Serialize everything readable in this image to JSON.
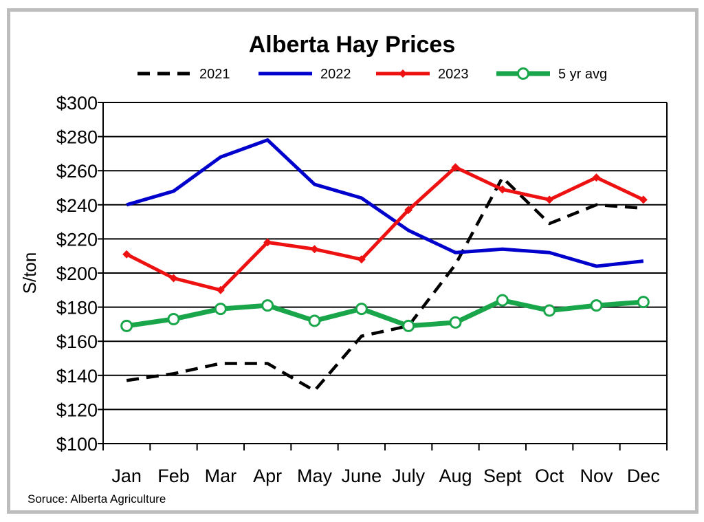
{
  "chart_data": {
    "type": "line",
    "title": "Alberta Hay Prices",
    "ylabel": "S/ton",
    "xlabel": "",
    "categories": [
      "Jan",
      "Feb",
      "Mar",
      "Apr",
      "May",
      "June",
      "July",
      "Aug",
      "Sept",
      "Oct",
      "Nov",
      "Dec"
    ],
    "ylim": [
      100,
      300
    ],
    "yticks": [
      100,
      120,
      140,
      160,
      180,
      200,
      220,
      240,
      260,
      280,
      300
    ],
    "ytick_labels": [
      "$100",
      "$120",
      "$140",
      "$160",
      "$180",
      "$200",
      "$220",
      "$240",
      "$260",
      "$280",
      "$300"
    ],
    "grid": true,
    "legend_position": "top",
    "series": [
      {
        "name": "2021",
        "color": "#000000",
        "style": "dashed",
        "marker": "none",
        "values": [
          137,
          141,
          147,
          147,
          131,
          163,
          169,
          205,
          256,
          229,
          240,
          238
        ]
      },
      {
        "name": "2022",
        "color": "#0000cc",
        "style": "solid",
        "marker": "none",
        "values": [
          240,
          248,
          268,
          278,
          252,
          244,
          225,
          212,
          214,
          212,
          204,
          207
        ]
      },
      {
        "name": "2023",
        "color": "#ee1111",
        "style": "solid",
        "marker": "diamond",
        "values": [
          211,
          197,
          190,
          218,
          214,
          208,
          237,
          262,
          249,
          243,
          256,
          243
        ]
      },
      {
        "name": "5 yr avg",
        "color": "#19a64b",
        "style": "solid",
        "marker": "circle",
        "values": [
          169,
          173,
          179,
          181,
          172,
          179,
          169,
          171,
          184,
          178,
          181,
          183
        ]
      }
    ]
  },
  "source_note": "Soruce: Alberta Agriculture"
}
